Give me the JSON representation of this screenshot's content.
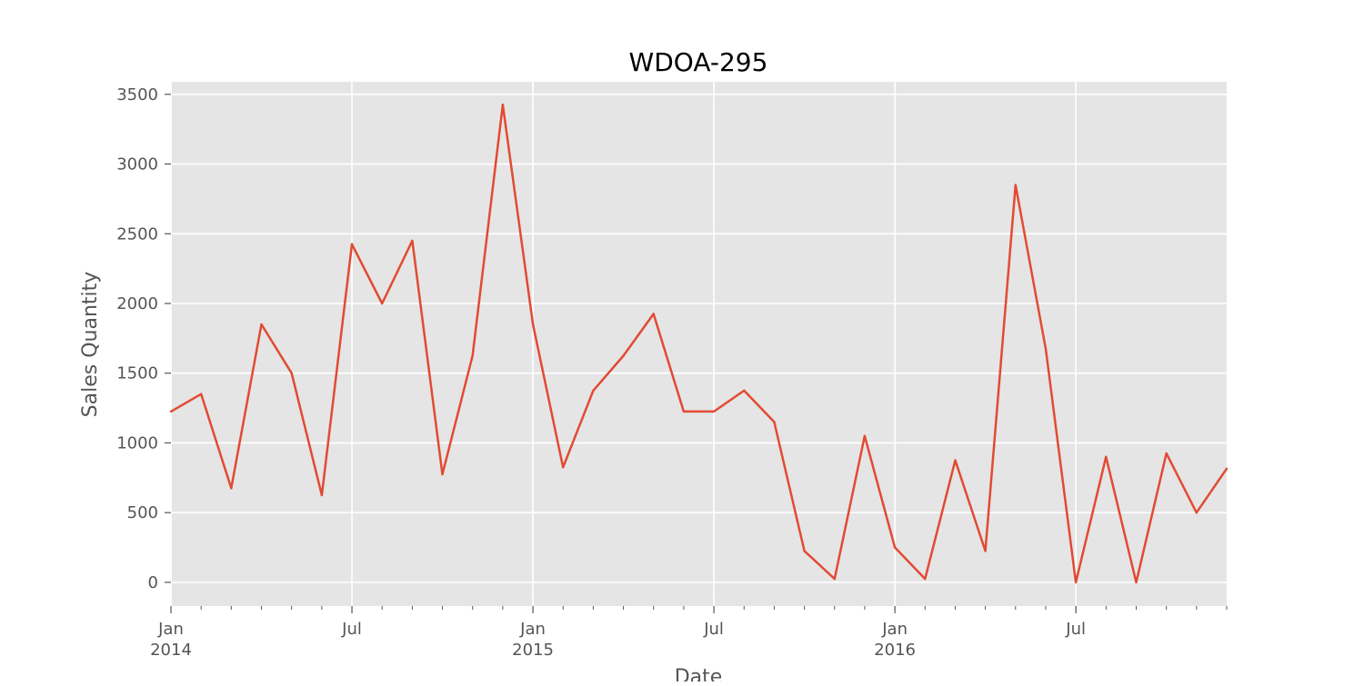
{
  "chart_data": {
    "type": "line",
    "title": "WDOA-295",
    "xlabel": "Date",
    "ylabel": "Sales Quantity",
    "grid": true,
    "ylim": [
      -170,
      3590
    ],
    "xlim": [
      "2014-01",
      "2016-12"
    ],
    "colors": {
      "line": "#E24A33",
      "plot_bg": "#E5E5E5",
      "grid": "#FFFFFF",
      "text": "#555555"
    },
    "y_ticks": [
      0,
      500,
      1000,
      1500,
      2000,
      2500,
      3000,
      3500
    ],
    "x_major_ticks": [
      {
        "date": "2014-01",
        "label": "Jan",
        "year": "2014"
      },
      {
        "date": "2014-07",
        "label": "Jul"
      },
      {
        "date": "2015-01",
        "label": "Jan",
        "year": "2015"
      },
      {
        "date": "2015-07",
        "label": "Jul"
      },
      {
        "date": "2016-01",
        "label": "Jan",
        "year": "2016"
      },
      {
        "date": "2016-07",
        "label": "Jul"
      }
    ],
    "series": [
      {
        "x": [
          "2014-01",
          "2014-02",
          "2014-03",
          "2014-04",
          "2014-05",
          "2014-06",
          "2014-07",
          "2014-08",
          "2014-09",
          "2014-10",
          "2014-11",
          "2014-12",
          "2015-01",
          "2015-02",
          "2015-03",
          "2015-04",
          "2015-05",
          "2015-06",
          "2015-07",
          "2015-08",
          "2015-09",
          "2015-10",
          "2015-11",
          "2015-12",
          "2016-01",
          "2016-02",
          "2016-03",
          "2016-04",
          "2016-05",
          "2016-06",
          "2016-07",
          "2016-08",
          "2016-09",
          "2016-10",
          "2016-11",
          "2016-12"
        ],
        "values": [
          1225,
          1350,
          675,
          1850,
          1500,
          625,
          2425,
          2000,
          2450,
          775,
          1625,
          3425,
          1850,
          825,
          1375,
          1625,
          1925,
          1225,
          1225,
          1375,
          1150,
          225,
          25,
          1050,
          250,
          25,
          875,
          225,
          2850,
          1675,
          0,
          900,
          0,
          925,
          500,
          815
        ]
      }
    ]
  }
}
